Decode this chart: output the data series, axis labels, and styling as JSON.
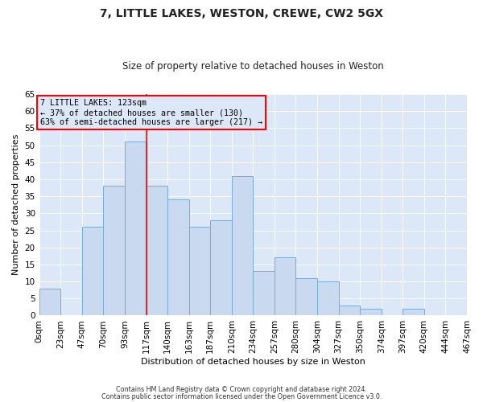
{
  "title": "7, LITTLE LAKES, WESTON, CREWE, CW2 5GX",
  "subtitle": "Size of property relative to detached houses in Weston",
  "xlabel": "Distribution of detached houses by size in Weston",
  "ylabel": "Number of detached properties",
  "bar_values": [
    8,
    0,
    26,
    38,
    51,
    38,
    34,
    26,
    28,
    41,
    13,
    17,
    11,
    10,
    3,
    2,
    0,
    2
  ],
  "tick_labels": [
    "0sqm",
    "23sqm",
    "47sqm",
    "70sqm",
    "93sqm",
    "117sqm",
    "140sqm",
    "163sqm",
    "187sqm",
    "210sqm",
    "234sqm",
    "257sqm",
    "280sqm",
    "304sqm",
    "327sqm",
    "350sqm",
    "374sqm",
    "397sqm",
    "420sqm",
    "444sqm",
    "467sqm"
  ],
  "bar_color": "#c9d9f0",
  "bar_edge_color": "#7aaad4",
  "property_line_x": 5,
  "ylim": [
    0,
    65
  ],
  "yticks": [
    0,
    5,
    10,
    15,
    20,
    25,
    30,
    35,
    40,
    45,
    50,
    55,
    60,
    65
  ],
  "annotation_title": "7 LITTLE LAKES: 123sqm",
  "annotation_line1": "← 37% of detached houses are smaller (130)",
  "annotation_line2": "63% of semi-detached houses are larger (217) →",
  "footer1": "Contains HM Land Registry data © Crown copyright and database right 2024.",
  "footer2": "Contains public sector information licensed under the Open Government Licence v3.0.",
  "plot_bg_color": "#dce8f8",
  "fig_bg_color": "#ffffff",
  "title_color": "#222222"
}
